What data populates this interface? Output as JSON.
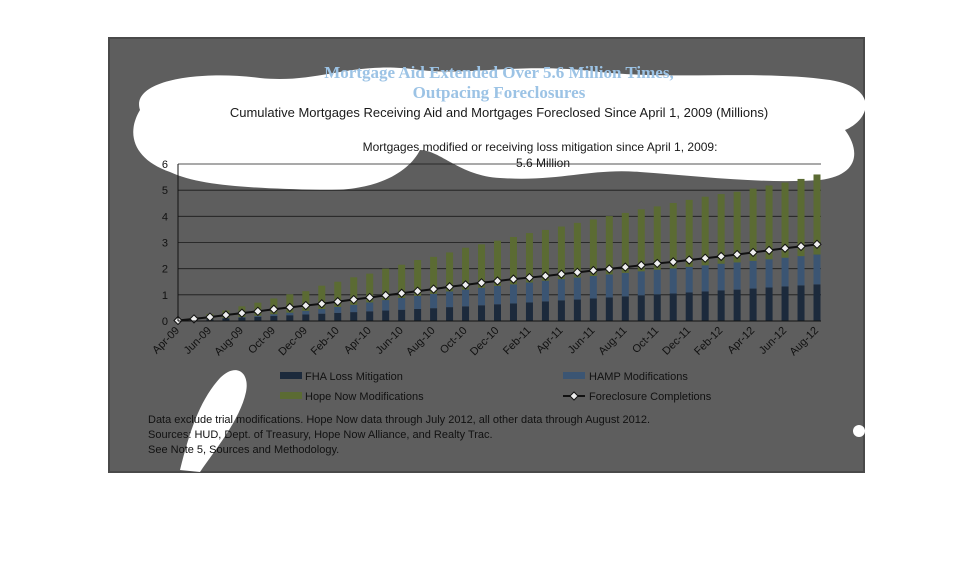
{
  "chart_data": {
    "type": "bar",
    "title_line1": "Mortgage Aid Extended Over 5.6 Million Times,",
    "title_line2": "Outpacing Foreclosures",
    "subtitle": "Cumulative Mortgages Receiving Aid and Mortgages Foreclosed Since April 1, 2009 (Millions)",
    "annotation_line1": "Mortgages modified or receiving loss mitigation since April 1, 2009:",
    "annotation_line2": "5.6 Million",
    "ylim": [
      0,
      6
    ],
    "yticks": [
      "0",
      "1",
      "2",
      "3",
      "4",
      "5",
      "6"
    ],
    "xtick_labels": [
      "Apr-09",
      "Jun-09",
      "Aug-09",
      "Oct-09",
      "Dec-09",
      "Feb-10",
      "Apr-10",
      "Jun-10",
      "Aug-10",
      "Oct-10",
      "Dec-10",
      "Feb-11",
      "Apr-11",
      "Jun-11",
      "Aug-11",
      "Oct-11",
      "Dec-11",
      "Feb-12",
      "Apr-12",
      "Jun-12",
      "Aug-12"
    ],
    "categories": [
      "Apr-09",
      "May-09",
      "Jun-09",
      "Jul-09",
      "Aug-09",
      "Sep-09",
      "Oct-09",
      "Nov-09",
      "Dec-09",
      "Jan-10",
      "Feb-10",
      "Mar-10",
      "Apr-10",
      "May-10",
      "Jun-10",
      "Jul-10",
      "Aug-10",
      "Sep-10",
      "Oct-10",
      "Nov-10",
      "Dec-10",
      "Jan-11",
      "Feb-11",
      "Mar-11",
      "Apr-11",
      "May-11",
      "Jun-11",
      "Jul-11",
      "Aug-11",
      "Sep-11",
      "Oct-11",
      "Nov-11",
      "Dec-11",
      "Jan-12",
      "Feb-12",
      "Mar-12",
      "Apr-12",
      "May-12",
      "Jun-12",
      "Jul-12",
      "Aug-12"
    ],
    "series": [
      {
        "name": "FHA Loss Mitigation",
        "kind": "bar",
        "color": "#1c2a3c",
        "values": [
          0.01,
          0.04,
          0.07,
          0.1,
          0.13,
          0.16,
          0.19,
          0.22,
          0.25,
          0.28,
          0.31,
          0.34,
          0.37,
          0.4,
          0.43,
          0.46,
          0.49,
          0.53,
          0.56,
          0.6,
          0.64,
          0.67,
          0.71,
          0.75,
          0.79,
          0.82,
          0.86,
          0.9,
          0.94,
          0.98,
          1.02,
          1.05,
          1.09,
          1.13,
          1.17,
          1.2,
          1.24,
          1.28,
          1.32,
          1.36,
          1.4
        ]
      },
      {
        "name": "HAMP Modifications",
        "kind": "bar",
        "color": "#3b5573",
        "values": [
          0.0,
          0.0,
          0.0,
          0.01,
          0.02,
          0.04,
          0.07,
          0.1,
          0.14,
          0.18,
          0.23,
          0.28,
          0.34,
          0.4,
          0.45,
          0.5,
          0.55,
          0.6,
          0.64,
          0.67,
          0.7,
          0.73,
          0.76,
          0.79,
          0.81,
          0.84,
          0.86,
          0.88,
          0.9,
          0.92,
          0.94,
          0.96,
          0.98,
          1.0,
          1.02,
          1.04,
          1.06,
          1.08,
          1.1,
          1.12,
          1.14
        ]
      },
      {
        "name": "Hope Now Modifications",
        "kind": "bar",
        "color": "#5b6b33",
        "values": [
          0.03,
          0.11,
          0.2,
          0.29,
          0.41,
          0.5,
          0.6,
          0.7,
          0.75,
          0.89,
          0.96,
          1.05,
          1.1,
          1.2,
          1.27,
          1.37,
          1.41,
          1.49,
          1.6,
          1.66,
          1.73,
          1.81,
          1.89,
          1.94,
          2.01,
          2.09,
          2.16,
          2.23,
          2.29,
          2.37,
          2.42,
          2.5,
          2.56,
          2.62,
          2.66,
          2.7,
          2.76,
          2.82,
          2.87,
          2.95,
          3.06
        ]
      },
      {
        "name": "Foreclosure Completions",
        "kind": "line",
        "color": "#111111",
        "values": [
          0.02,
          0.08,
          0.15,
          0.23,
          0.3,
          0.37,
          0.45,
          0.52,
          0.59,
          0.66,
          0.74,
          0.82,
          0.9,
          0.98,
          1.06,
          1.14,
          1.22,
          1.31,
          1.38,
          1.46,
          1.53,
          1.6,
          1.66,
          1.72,
          1.79,
          1.86,
          1.93,
          1.99,
          2.06,
          2.13,
          2.2,
          2.26,
          2.33,
          2.4,
          2.47,
          2.54,
          2.62,
          2.7,
          2.78,
          2.85,
          2.93
        ]
      }
    ],
    "legend_placement": "bottom",
    "grid": true
  },
  "notes": [
    "Data exclude trial modifications. Hope Now data through July 2012, all other data through August 2012.",
    "Sources:  HUD, Dept. of Treasury, Hope Now Alliance, and Realty Trac.",
    "See Note 5, Sources and Methodology."
  ]
}
